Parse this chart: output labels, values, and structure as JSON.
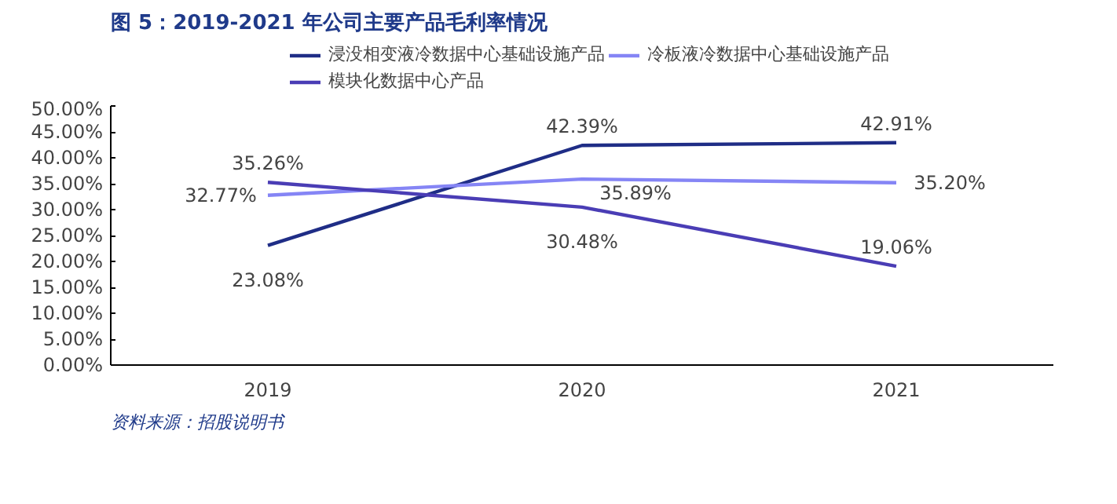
{
  "chart_data": {
    "type": "line",
    "title": "图 5：2019-2021 年公司主要产品毛利率情况",
    "categories": [
      "2019",
      "2020",
      "2021"
    ],
    "series": [
      {
        "name": "浸没相变液冷数据中心基础设施产品",
        "color": "#1f2d86",
        "values": [
          23.08,
          42.39,
          42.91
        ],
        "value_labels": [
          "23.08%",
          "42.39%",
          "42.91%"
        ]
      },
      {
        "name": "冷板液冷数据中心基础设施产品",
        "color": "#8585f5",
        "values": [
          32.77,
          35.89,
          35.2
        ],
        "value_labels": [
          "32.77%",
          "35.89%",
          "35.20%"
        ]
      },
      {
        "name": "模块化数据中心产品",
        "color": "#4a3db5",
        "values": [
          35.26,
          30.48,
          19.06
        ],
        "value_labels": [
          "35.26%",
          "30.48%",
          "19.06%"
        ]
      }
    ],
    "ylim": [
      0,
      50
    ],
    "yticks": [
      {
        "value": 0,
        "label": "0.00%"
      },
      {
        "value": 5,
        "label": "5.00%"
      },
      {
        "value": 10,
        "label": "10.00%"
      },
      {
        "value": 15,
        "label": "15.00%"
      },
      {
        "value": 20,
        "label": "20.00%"
      },
      {
        "value": 25,
        "label": "25.00%"
      },
      {
        "value": 30,
        "label": "30.00%"
      },
      {
        "value": 35,
        "label": "35.00%"
      },
      {
        "value": 40,
        "label": "40.00%"
      },
      {
        "value": 45,
        "label": "45.00%"
      },
      {
        "value": 50,
        "label": "50.00%"
      }
    ],
    "legend": "top",
    "grid": false,
    "marker": "none",
    "line_style": "solid",
    "annotations": [
      "资料来源：招股说明书"
    ]
  }
}
